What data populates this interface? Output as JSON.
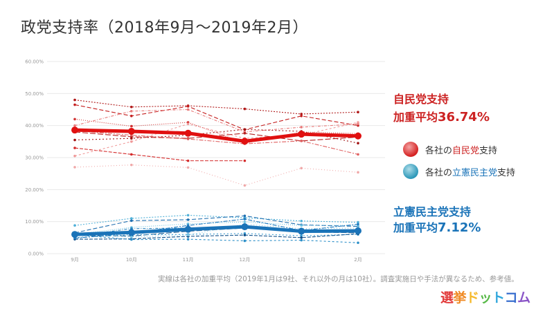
{
  "header": {
    "title": "政党支持率（2018年9月～2019年2月）"
  },
  "ldp_summary": {
    "head": "自民党支持",
    "prefix": "加重平均",
    "value": "36.74%"
  },
  "cdp_summary": {
    "head": "立憲民主党支持",
    "prefix": "加重平均",
    "value": "7.12%"
  },
  "legend": {
    "red": {
      "prefix": "各社の",
      "party": "自民党",
      "suffix": "支持"
    },
    "blue": {
      "prefix": "各社の",
      "party": "立憲民主党",
      "suffix": "支持"
    }
  },
  "footnote": "実線は各社の加重平均（2019年1月は9社、それ以外の月は10社）。調査実施日や手法が異なるため、参考値。",
  "logo": {
    "chars": [
      "選",
      "挙",
      "ド",
      "ッ",
      "ト",
      "コ",
      "ム"
    ]
  },
  "colors": {
    "ldp": "#e01010",
    "cdp": "#1a73b8",
    "grid": "#e8e8e8"
  },
  "chart_data": {
    "type": "line",
    "categories": [
      "9月",
      "10月",
      "11月",
      "12月",
      "1月",
      "2月"
    ],
    "ylim": [
      0,
      60
    ],
    "yticks": [
      "0.00%",
      "10.00%",
      "20.00%",
      "30.00%",
      "40.00%",
      "50.00%",
      "60.00%"
    ],
    "ytick_values": [
      0,
      10,
      20,
      30,
      40,
      50,
      60
    ],
    "grid": true,
    "weighted_average": [
      {
        "party": "自民党",
        "values": [
          38.6,
          38.2,
          37.6,
          35.1,
          37.3,
          36.74
        ]
      },
      {
        "party": "立憲民主党",
        "values": [
          6.0,
          6.6,
          7.6,
          8.4,
          7.0,
          7.12
        ]
      }
    ],
    "pollsters_ldp": [
      [
        48.0,
        45.8,
        46.2,
        45.2,
        43.6,
        44.2
      ],
      [
        46.5,
        43.0,
        46.0,
        38.7,
        43.0,
        40.0
      ],
      [
        42.0,
        39.8,
        41.0,
        34.5,
        38.0,
        37.5
      ],
      [
        40.0,
        44.5,
        45.0,
        38.0,
        39.5,
        40.5
      ],
      [
        38.0,
        36.5,
        36.0,
        37.6,
        35.2,
        36.4
      ],
      [
        35.5,
        36.0,
        37.0,
        38.8,
        38.2,
        34.5
      ],
      [
        33.0,
        31.0,
        29.0,
        29.0,
        null,
        null
      ],
      [
        30.5,
        35.0,
        40.5,
        36.0,
        37.0,
        41.0
      ],
      [
        27.0,
        27.7,
        26.9,
        21.3,
        26.7,
        25.4
      ],
      [
        38.4,
        37.0,
        35.8,
        34.3,
        35.2,
        31.0
      ]
    ],
    "pollsters_cdp": [
      [
        8.8,
        11.0,
        12.0,
        11.2,
        10.2,
        9.8
      ],
      [
        6.5,
        10.3,
        10.6,
        11.8,
        9.0,
        8.5
      ],
      [
        6.0,
        8.2,
        9.3,
        9.9,
        8.8,
        8.8
      ],
      [
        5.5,
        7.8,
        8.0,
        8.5,
        7.5,
        7.3
      ],
      [
        5.7,
        5.5,
        7.0,
        8.0,
        6.8,
        6.5
      ],
      [
        5.0,
        5.9,
        6.0,
        6.3,
        5.6,
        6.0
      ],
      [
        4.5,
        4.6,
        5.4,
        5.8,
        5.0,
        6.2
      ],
      [
        5.9,
        4.4,
        4.5,
        4.0,
        4.2,
        3.4
      ],
      [
        6.3,
        5.2,
        5.8,
        9.2,
        7.8,
        8.0
      ],
      [
        4.8,
        6.4,
        8.8,
        10.8,
        7.2,
        9.2
      ]
    ]
  }
}
